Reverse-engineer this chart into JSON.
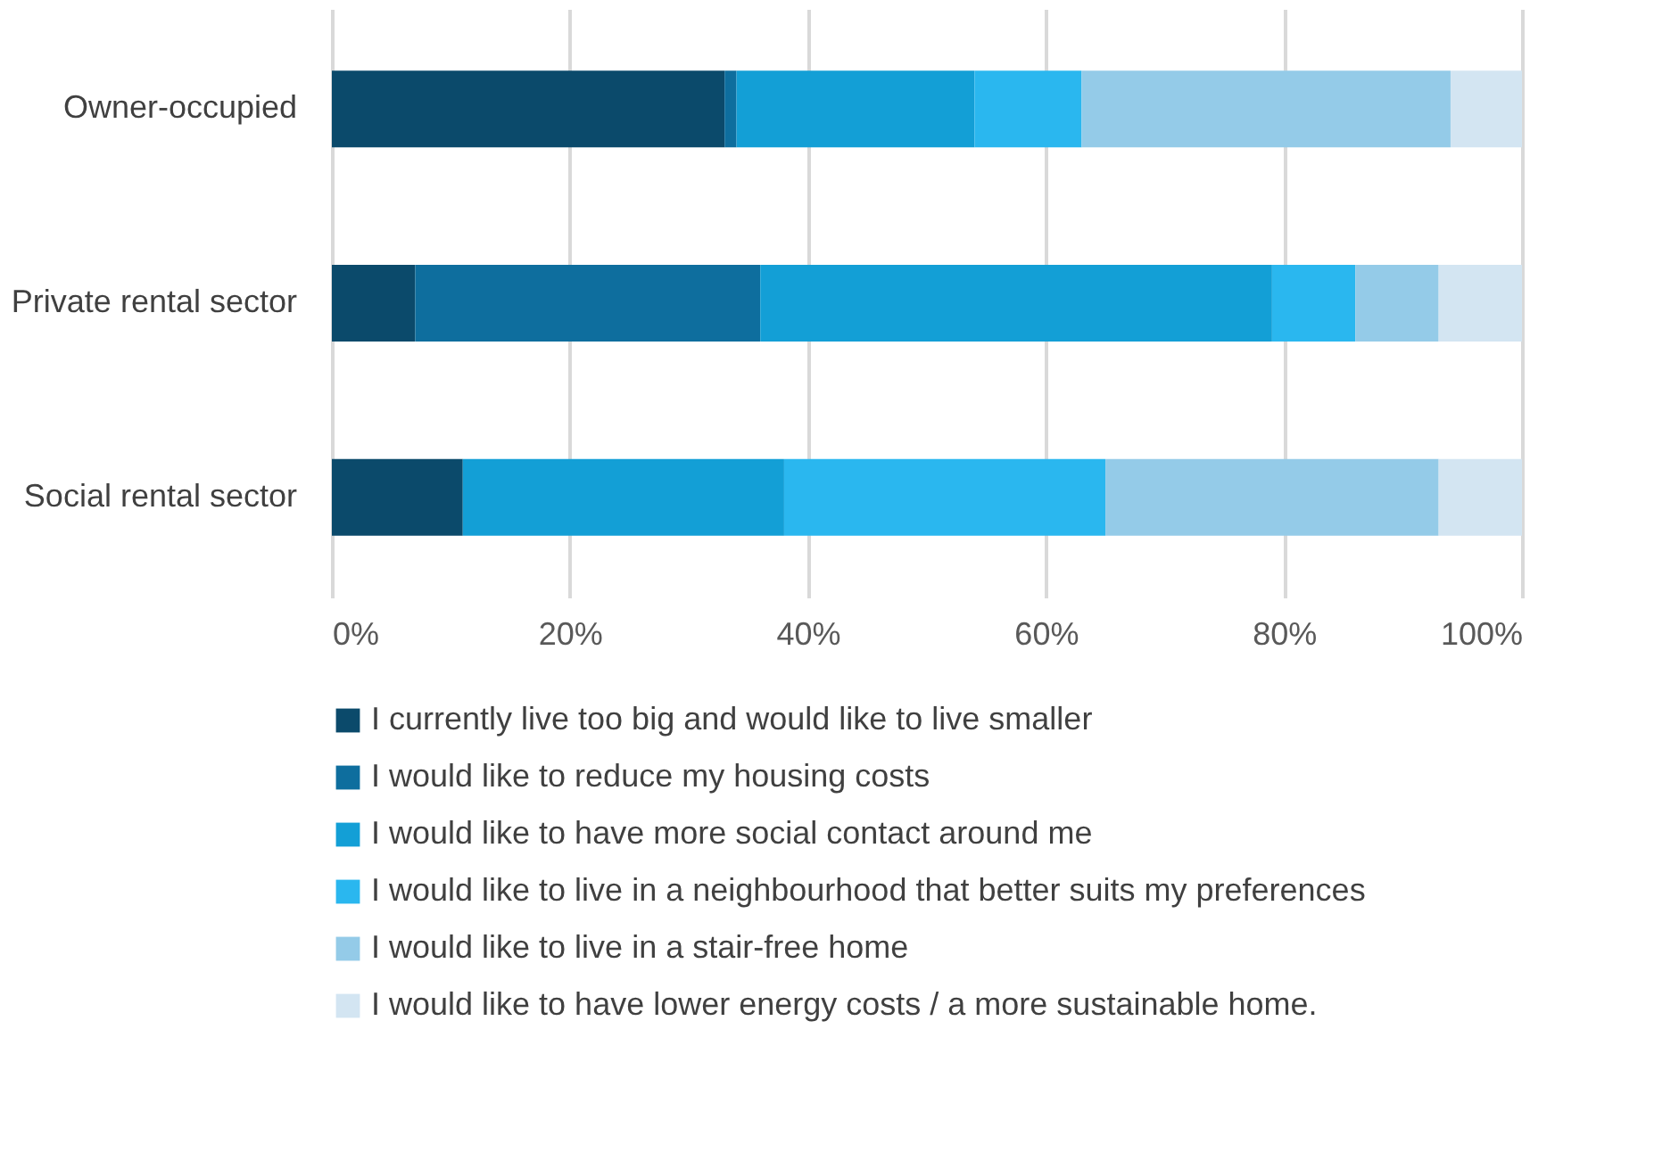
{
  "chart_data": {
    "type": "bar",
    "orientation": "horizontal",
    "stacked": true,
    "categories": [
      "Owner-occupied",
      "Private rental sector",
      "Social rental sector"
    ],
    "series": [
      {
        "name": "I currently live too big and would like to live smaller",
        "color": "#0b4a6b",
        "values": [
          33,
          7,
          11
        ]
      },
      {
        "name": "I would like to reduce my housing costs",
        "color": "#0e6e9e",
        "values": [
          1,
          29,
          0
        ]
      },
      {
        "name": "I would like to have more social contact around me",
        "color": "#139fd6",
        "values": [
          20,
          43,
          27
        ]
      },
      {
        "name": "I would like to live in a neighbourhood that better suits my preferences",
        "color": "#2ab7ef",
        "values": [
          9,
          7,
          27
        ]
      },
      {
        "name": "I would like to live in a stair-free home",
        "color": "#94cbe8",
        "values": [
          31,
          7,
          28
        ]
      },
      {
        "name": "I would like to have lower energy costs / a more sustainable home.",
        "color": "#d3e5f2",
        "values": [
          6,
          7,
          7
        ]
      }
    ],
    "xlim": [
      0,
      100
    ],
    "xticks": [
      {
        "value": 0,
        "label": "0%"
      },
      {
        "value": 20,
        "label": "20%"
      },
      {
        "value": 40,
        "label": "40%"
      },
      {
        "value": 60,
        "label": "60%"
      },
      {
        "value": 80,
        "label": "80%"
      },
      {
        "value": 100,
        "label": "100%"
      }
    ],
    "grid": "x",
    "legend": "bottom"
  }
}
